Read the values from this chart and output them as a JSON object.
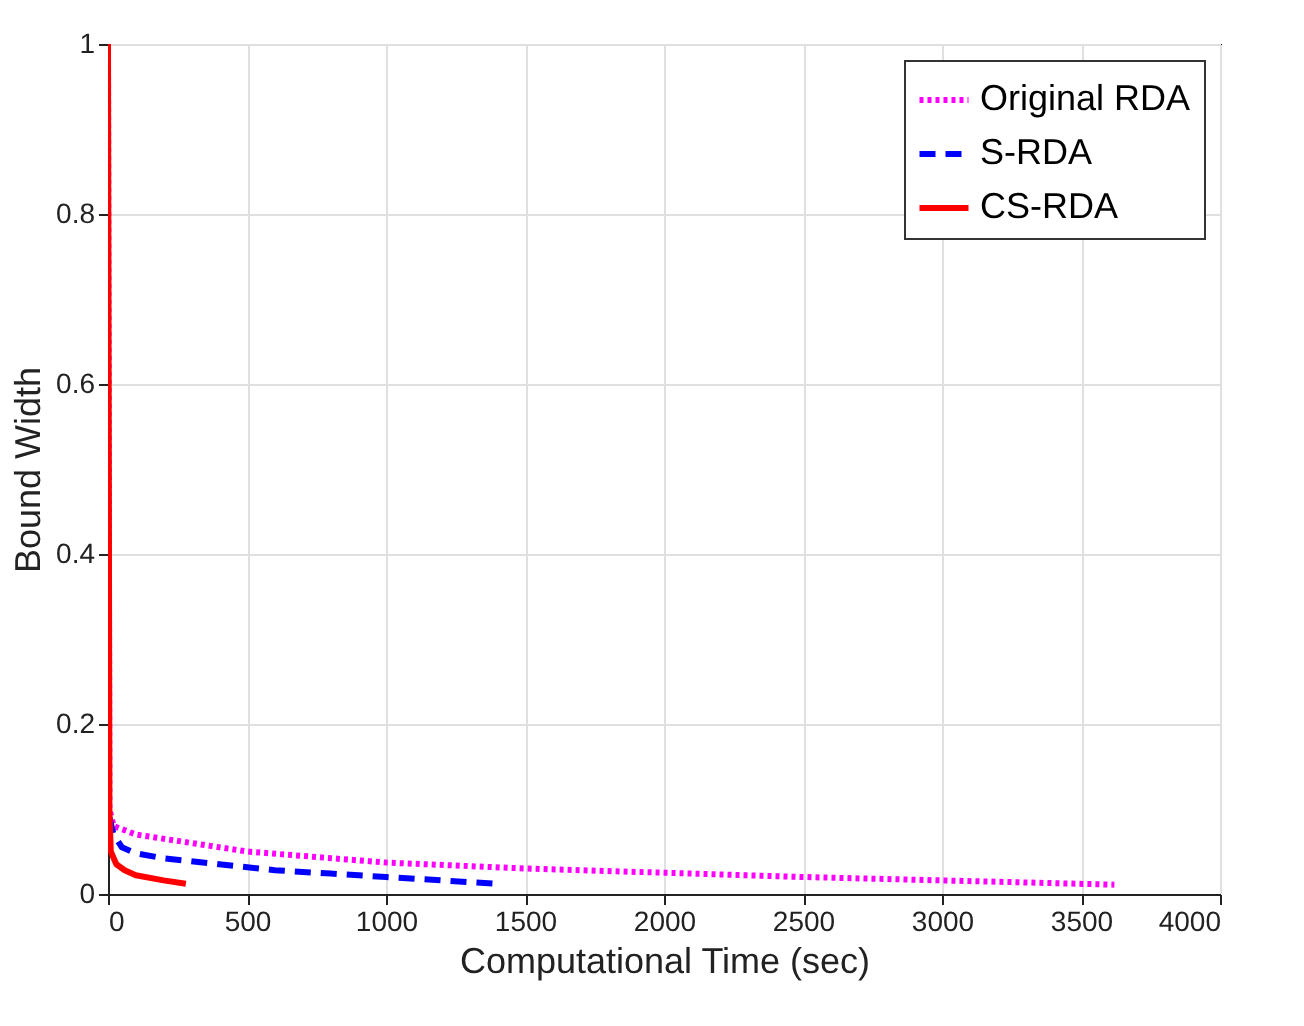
{
  "chart_data": {
    "type": "line",
    "xlabel": "Computational Time (sec)",
    "ylabel": "Bound Width",
    "xlim": [
      0,
      4000
    ],
    "xticks": [
      0,
      500,
      1000,
      1500,
      2000,
      2500,
      3000,
      3500,
      4000
    ],
    "ylim": [
      0,
      1
    ],
    "yticks": [
      0,
      0.2,
      0.4,
      0.6,
      0.8,
      1
    ],
    "grid": true,
    "legend": "top right",
    "series": [
      {
        "name": "Original RDA",
        "color": "#ff00ff",
        "line_style": "dotted",
        "x": [
          0,
          5,
          20,
          100,
          300,
          500,
          1000,
          1500,
          2000,
          2500,
          3000,
          3620
        ],
        "values": [
          1,
          0.1,
          0.08,
          0.07,
          0.06,
          0.05,
          0.037,
          0.03,
          0.025,
          0.02,
          0.016,
          0.011
        ]
      },
      {
        "name": "S-RDA",
        "color": "#0000ff",
        "line_style": "dashed",
        "x": [
          5,
          20,
          50,
          100,
          200,
          400,
          600,
          800,
          1000,
          1200,
          1400
        ],
        "values": [
          0.09,
          0.07,
          0.055,
          0.048,
          0.042,
          0.035,
          0.028,
          0.024,
          0.02,
          0.016,
          0.012
        ]
      },
      {
        "name": "CS-RDA",
        "color": "#ff0000",
        "line_style": "solid",
        "x": [
          0,
          3,
          5,
          10,
          30,
          60,
          100,
          200,
          280
        ],
        "values": [
          1,
          0.5,
          0.1,
          0.05,
          0.035,
          0.028,
          0.022,
          0.016,
          0.012
        ]
      }
    ]
  }
}
